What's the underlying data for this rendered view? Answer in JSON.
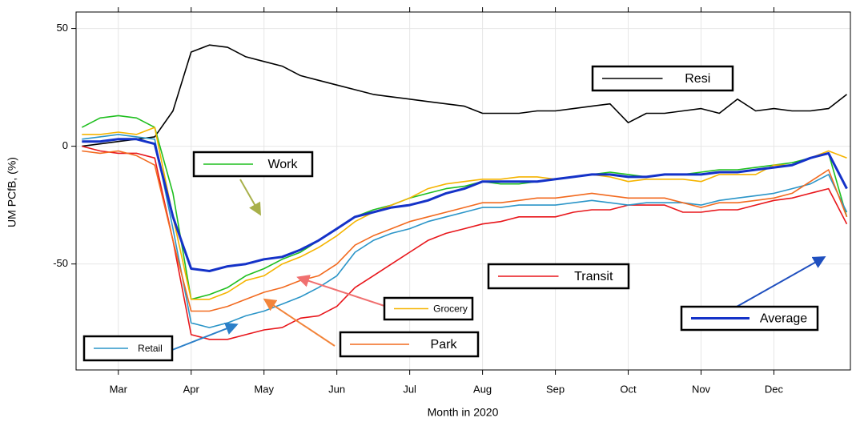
{
  "chart_data": {
    "type": "line",
    "xlabel": "Month in 2020",
    "ylabel": "UM PCfB, (%)",
    "x": [
      2.5,
      2.75,
      3,
      3.25,
      3.5,
      3.75,
      4,
      4.25,
      4.5,
      4.75,
      5,
      5.25,
      5.5,
      5.75,
      6,
      6.25,
      6.5,
      6.75,
      7,
      7.25,
      7.5,
      7.75,
      8,
      8.25,
      8.5,
      8.75,
      9,
      9.25,
      9.5,
      9.75,
      10,
      10.25,
      10.5,
      10.75,
      11,
      11.25,
      11.5,
      11.75,
      12,
      12.25,
      12.5,
      12.75,
      13
    ],
    "xlim": [
      2.42,
      13.05
    ],
    "xticks": [
      {
        "value": 3,
        "label": "Mar"
      },
      {
        "value": 4,
        "label": "Apr"
      },
      {
        "value": 5,
        "label": "May"
      },
      {
        "value": 6,
        "label": "Jun"
      },
      {
        "value": 7,
        "label": "Jul"
      },
      {
        "value": 8,
        "label": "Aug"
      },
      {
        "value": 9,
        "label": "Sep"
      },
      {
        "value": 10,
        "label": "Oct"
      },
      {
        "value": 11,
        "label": "Nov"
      },
      {
        "value": 12,
        "label": "Dec"
      }
    ],
    "ylim": [
      -95,
      57
    ],
    "yticks": [
      -50,
      0,
      50
    ],
    "grid": true,
    "series": [
      {
        "name": "Resi",
        "color": "#000000",
        "values": [
          0,
          1,
          2,
          3,
          4,
          15,
          40,
          43,
          42,
          38,
          36,
          34,
          30,
          28,
          26,
          24,
          22,
          21,
          20,
          19,
          18,
          17,
          14,
          14,
          14,
          15,
          15,
          16,
          17,
          18,
          10,
          14,
          14,
          15,
          16,
          14,
          20,
          15,
          16,
          15,
          15,
          16,
          22
        ]
      },
      {
        "name": "Work",
        "color": "#1fbf1f",
        "values": [
          8,
          12,
          13,
          12,
          8,
          -20,
          -65,
          -63,
          -60,
          -55,
          -52,
          -48,
          -45,
          -40,
          -35,
          -30,
          -27,
          -25,
          -22,
          -20,
          -18,
          -17,
          -15,
          -16,
          -16,
          -15,
          -14,
          -13,
          -12,
          -11,
          -12,
          -13,
          -12,
          -12,
          -11,
          -10,
          -10,
          -9,
          -8,
          -7,
          -5,
          -3,
          -30
        ]
      },
      {
        "name": "Transit",
        "color": "#e8161b",
        "values": [
          0,
          -2,
          -3,
          -3,
          -5,
          -40,
          -80,
          -82,
          -82,
          -80,
          -78,
          -77,
          -73,
          -72,
          -68,
          -60,
          -55,
          -50,
          -45,
          -40,
          -37,
          -35,
          -33,
          -32,
          -30,
          -30,
          -30,
          -28,
          -27,
          -27,
          -25,
          -25,
          -25,
          -28,
          -28,
          -27,
          -27,
          -25,
          -23,
          -22,
          -20,
          -18,
          -33
        ]
      },
      {
        "name": "Grocery",
        "color": "#f5b400",
        "values": [
          5,
          5,
          6,
          5,
          8,
          -30,
          -65,
          -65,
          -62,
          -57,
          -55,
          -50,
          -47,
          -43,
          -38,
          -32,
          -28,
          -25,
          -22,
          -18,
          -16,
          -15,
          -14,
          -14,
          -13,
          -13,
          -14,
          -13,
          -12,
          -13,
          -15,
          -14,
          -14,
          -14,
          -15,
          -12,
          -12,
          -12,
          -8,
          -8,
          -5,
          -2,
          -5
        ]
      },
      {
        "name": "Retail",
        "color": "#2b95c8",
        "values": [
          3,
          4,
          5,
          4,
          3,
          -35,
          -75,
          -77,
          -75,
          -72,
          -70,
          -67,
          -64,
          -60,
          -55,
          -45,
          -40,
          -37,
          -35,
          -32,
          -30,
          -28,
          -26,
          -26,
          -25,
          -25,
          -25,
          -24,
          -23,
          -24,
          -25,
          -24,
          -24,
          -24,
          -25,
          -23,
          -22,
          -21,
          -20,
          -18,
          -16,
          -12,
          -28
        ]
      },
      {
        "name": "Park",
        "color": "#f26a1f",
        "values": [
          -2,
          -3,
          -2,
          -4,
          -8,
          -40,
          -70,
          -70,
          -68,
          -65,
          -62,
          -60,
          -57,
          -55,
          -50,
          -42,
          -38,
          -35,
          -32,
          -30,
          -28,
          -26,
          -24,
          -24,
          -23,
          -22,
          -22,
          -21,
          -20,
          -21,
          -22,
          -22,
          -22,
          -24,
          -26,
          -24,
          -24,
          -23,
          -22,
          -20,
          -15,
          -10,
          -30
        ]
      },
      {
        "name": "Average",
        "color": "#1432c8",
        "values": [
          2,
          2,
          3,
          3,
          1,
          -30,
          -52,
          -53,
          -51,
          -50,
          -48,
          -47,
          -44,
          -40,
          -35,
          -30,
          -28,
          -26,
          -25,
          -23,
          -20,
          -18,
          -15,
          -15,
          -15,
          -15,
          -14,
          -13,
          -12,
          -12,
          -13,
          -13,
          -12,
          -12,
          -12,
          -11,
          -11,
          -10,
          -9,
          -8,
          -5,
          -3,
          -18
        ]
      }
    ]
  }
}
